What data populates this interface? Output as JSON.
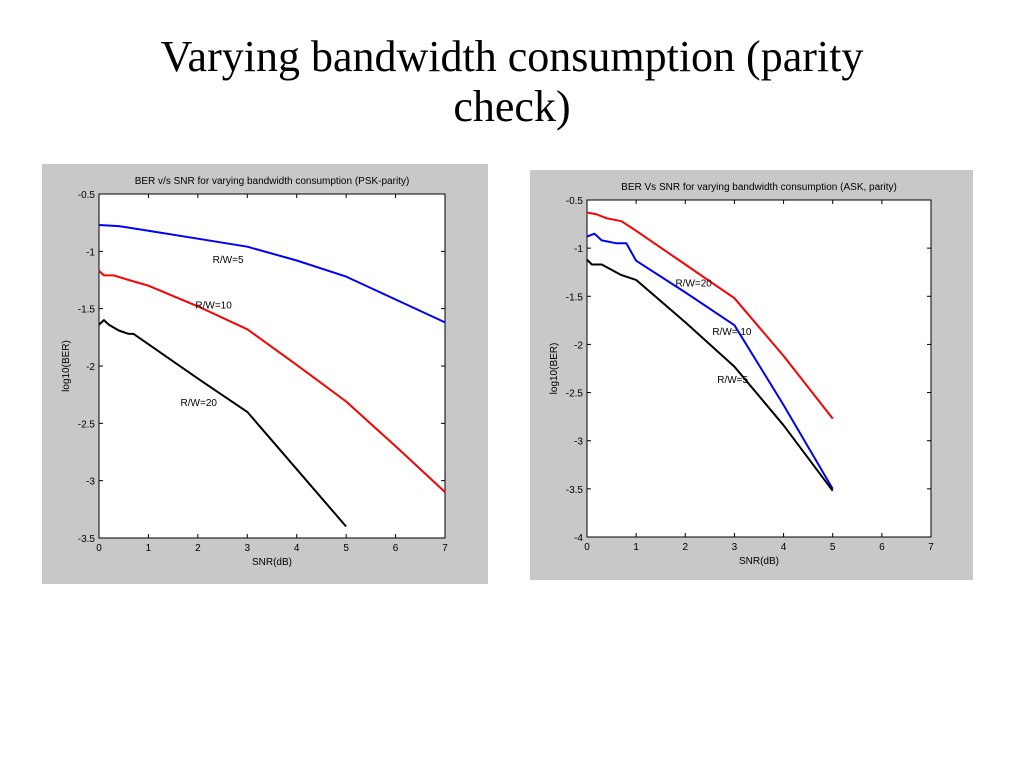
{
  "slide": {
    "title_line1": "Varying bandwidth consumption (parity",
    "title_line2": "check)"
  },
  "colors": {
    "background": "#ffffff",
    "panel": "#c8c8c8",
    "blue": "#0000ff",
    "red": "#ff0000",
    "black": "#000000"
  },
  "chart_data": [
    {
      "type": "line",
      "title": "BER v/s SNR for varying bandwidth consumption (PSK-parity)",
      "xlabel": "SNR(dB)",
      "ylabel": "log10(BER)",
      "xlim": [
        0,
        7
      ],
      "ylim": [
        -3.5,
        -0.5
      ],
      "xticks": [
        "0",
        "1",
        "2",
        "3",
        "4",
        "5",
        "6",
        "7"
      ],
      "yticks": [
        "-0.5",
        "-1",
        "-1.5",
        "-2",
        "-2.5",
        "-3",
        "-3.5"
      ],
      "grid": false,
      "series": [
        {
          "color": "#0000ff",
          "x": [
            0,
            0.4,
            1,
            2,
            3,
            4,
            5,
            6,
            7
          ],
          "y": [
            -0.77,
            -0.78,
            -0.82,
            -0.89,
            -0.96,
            -1.08,
            -1.22,
            -1.42,
            -1.62
          ]
        },
        {
          "color": "#ff0000",
          "x": [
            0,
            0.1,
            0.3,
            0.6,
            1,
            2,
            3,
            4,
            5,
            6,
            7
          ],
          "y": [
            -1.17,
            -1.21,
            -1.21,
            -1.25,
            -1.3,
            -1.48,
            -1.68,
            -1.99,
            -2.31,
            -2.7,
            -3.1
          ]
        },
        {
          "color": "#000000",
          "x": [
            0,
            0.1,
            0.2,
            0.4,
            0.6,
            0.7,
            1,
            2,
            3,
            4,
            5
          ],
          "y": [
            -1.64,
            -1.6,
            -1.64,
            -1.69,
            -1.72,
            -1.72,
            -1.81,
            -2.11,
            -2.4,
            -2.9,
            -3.4
          ]
        }
      ],
      "annotations": [
        {
          "text": "R/W=5",
          "x": 2.3,
          "y": -1.1
        },
        {
          "text": "R/W=10",
          "x": 1.95,
          "y": -1.5
        },
        {
          "text": "R/W=20",
          "x": 1.65,
          "y": -2.35
        }
      ]
    },
    {
      "type": "line",
      "title": "BER Vs SNR for varying bandwidth consumption (ASK, parity)",
      "xlabel": "SNR(dB)",
      "ylabel": "log10(BER)",
      "xlim": [
        0,
        7
      ],
      "ylim": [
        -4,
        -0.5
      ],
      "xticks": [
        "0",
        "1",
        "2",
        "3",
        "4",
        "5",
        "6",
        "7"
      ],
      "yticks": [
        "-0.5",
        "-1",
        "-1.5",
        "-2",
        "-2.5",
        "-3",
        "-3.5",
        "-4"
      ],
      "grid": false,
      "series": [
        {
          "color": "#ff0000",
          "x": [
            0,
            0.2,
            0.4,
            0.7,
            1,
            2,
            3,
            4,
            5
          ],
          "y": [
            -0.63,
            -0.65,
            -0.69,
            -0.72,
            -0.82,
            -1.17,
            -1.52,
            -2.12,
            -2.77
          ]
        },
        {
          "color": "#0000ff",
          "x": [
            0,
            0.15,
            0.3,
            0.6,
            0.8,
            1,
            2,
            3,
            4,
            5
          ],
          "y": [
            -0.88,
            -0.85,
            -0.92,
            -0.95,
            -0.95,
            -1.13,
            -1.46,
            -1.8,
            -2.63,
            -3.5
          ]
        },
        {
          "color": "#000000",
          "x": [
            0,
            0.1,
            0.3,
            0.7,
            1,
            2,
            3,
            4,
            5
          ],
          "y": [
            -1.12,
            -1.17,
            -1.17,
            -1.28,
            -1.33,
            -1.77,
            -2.23,
            -2.84,
            -3.52
          ]
        }
      ],
      "annotations": [
        {
          "text": "R/W=20",
          "x": 1.8,
          "y": -1.4
        },
        {
          "text": "R/W= 10",
          "x": 2.55,
          "y": -1.9
        },
        {
          "text": "R/W=5",
          "x": 2.65,
          "y": -2.4
        }
      ]
    }
  ]
}
